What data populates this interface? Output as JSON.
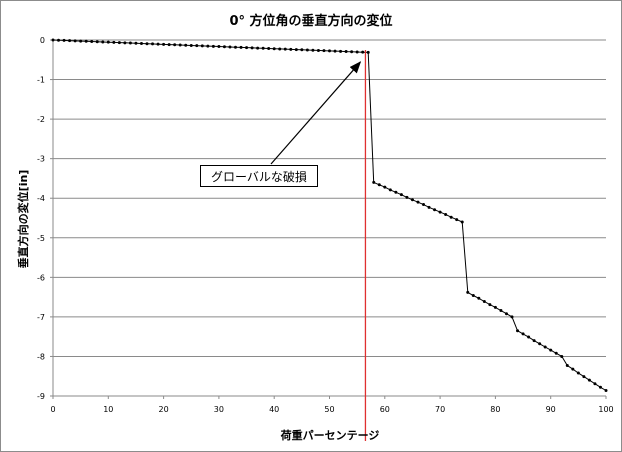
{
  "chart_data": {
    "type": "line",
    "title": "0° 方位角の垂直方向の変位",
    "xlabel": "荷重パーセンテージ",
    "ylabel": "垂直方向の変位[in]",
    "xlim": [
      0,
      100
    ],
    "ylim": [
      -9,
      0
    ],
    "x_ticks": [
      "0",
      "10",
      "20",
      "30",
      "40",
      "50",
      "60",
      "70",
      "80",
      "90",
      "100"
    ],
    "y_ticks": [
      "0",
      "-1",
      "-2",
      "-3",
      "-4",
      "-5",
      "-6",
      "-7",
      "-8",
      "-9"
    ],
    "grid": "horizontal",
    "legend": "none",
    "annotation": {
      "text": "グローバルな破損",
      "x": 56.5
    },
    "series": [
      {
        "color": "#000000",
        "x": [
          0,
          1,
          2,
          3,
          4,
          5,
          6,
          7,
          8,
          9,
          10,
          11,
          12,
          13,
          14,
          15,
          16,
          17,
          18,
          19,
          20,
          21,
          22,
          23,
          24,
          25,
          26,
          27,
          28,
          29,
          30,
          31,
          32,
          33,
          34,
          35,
          36,
          37,
          38,
          39,
          40,
          41,
          42,
          43,
          44,
          45,
          46,
          47,
          48,
          49,
          50,
          51,
          52,
          53,
          54,
          55,
          56,
          57,
          58,
          59,
          60,
          61,
          62,
          63,
          64,
          65,
          66,
          67,
          68,
          69,
          70,
          71,
          72,
          73,
          74,
          75,
          76,
          77,
          78,
          79,
          80,
          81,
          82,
          83,
          84,
          85,
          86,
          87,
          88,
          89,
          90,
          91,
          92,
          93,
          94,
          95,
          96,
          97,
          98,
          99,
          100
        ],
        "y": [
          0,
          -0.006,
          -0.011,
          -0.017,
          -0.022,
          -0.028,
          -0.033,
          -0.039,
          -0.044,
          -0.05,
          -0.055,
          -0.061,
          -0.066,
          -0.072,
          -0.077,
          -0.083,
          -0.088,
          -0.094,
          -0.099,
          -0.105,
          -0.11,
          -0.116,
          -0.121,
          -0.127,
          -0.132,
          -0.138,
          -0.143,
          -0.149,
          -0.154,
          -0.16,
          -0.165,
          -0.171,
          -0.176,
          -0.182,
          -0.187,
          -0.193,
          -0.198,
          -0.204,
          -0.209,
          -0.215,
          -0.22,
          -0.226,
          -0.231,
          -0.237,
          -0.242,
          -0.248,
          -0.253,
          -0.259,
          -0.264,
          -0.27,
          -0.275,
          -0.281,
          -0.286,
          -0.292,
          -0.297,
          -0.303,
          -0.308,
          -0.314,
          -3.6,
          -3.66,
          -3.72,
          -3.79,
          -3.85,
          -3.91,
          -3.98,
          -4.04,
          -4.1,
          -4.16,
          -4.23,
          -4.29,
          -4.35,
          -4.41,
          -4.48,
          -4.54,
          -4.6,
          -6.38,
          -6.46,
          -6.53,
          -6.61,
          -6.69,
          -6.76,
          -6.84,
          -6.92,
          -7.0,
          -7.35,
          -7.43,
          -7.51,
          -7.6,
          -7.68,
          -7.76,
          -7.84,
          -7.92,
          -8.0,
          -8.23,
          -8.32,
          -8.42,
          -8.51,
          -8.6,
          -8.69,
          -8.78,
          -8.86
        ]
      }
    ]
  }
}
